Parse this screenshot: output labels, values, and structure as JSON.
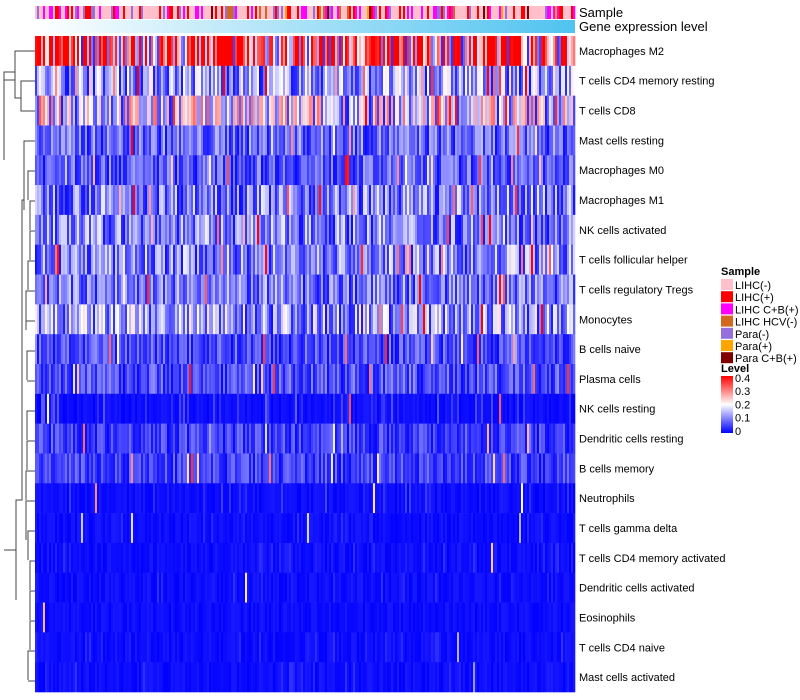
{
  "chart_data": {
    "type": "heatmap",
    "title": "",
    "annotations": [
      "Sample",
      "Gene expression level"
    ],
    "rows": [
      "Macrophages M2",
      "T cells CD4 memory resting",
      "T cells CD8",
      "Mast cells resting",
      "Macrophages M0",
      "Macrophages M1",
      "NK cells activated",
      "T cells follicular helper",
      "T cells regulatory  Tregs",
      "Monocytes",
      "B cells naive",
      "Plasma cells",
      "NK cells resting",
      "Dendritic cells resting",
      "B cells memory",
      "Neutrophils",
      "T cells gamma delta",
      "T cells CD4 memory activated",
      "Dendritic cells activated",
      "Eosinophils",
      "T cells CD4 naive",
      "Mast cells activated"
    ],
    "row_mean_level": [
      0.3,
      0.12,
      0.17,
      0.08,
      0.07,
      0.1,
      0.1,
      0.1,
      0.09,
      0.12,
      0.06,
      0.06,
      0.04,
      0.05,
      0.05,
      0.03,
      0.02,
      0.02,
      0.02,
      0.01,
      0.02,
      0.02
    ],
    "n_columns": 270,
    "sample_legend": {
      "title": "Sample",
      "entries": [
        {
          "label": "LIHC(-)",
          "color": "#ffc0cb"
        },
        {
          "label": "LIHC(+)",
          "color": "#ff0000"
        },
        {
          "label": "LIHC C+B(+)",
          "color": "#ff00ff"
        },
        {
          "label": "LIHC HCV(-)",
          "color": "#d2691e"
        },
        {
          "label": "Para(-)",
          "color": "#9370db"
        },
        {
          "label": "Para(+)",
          "color": "#ffa500"
        },
        {
          "label": "Para C+B(+)",
          "color": "#800000"
        }
      ]
    },
    "level_legend": {
      "title": "Level",
      "ticks": [
        "0.4",
        "0.3",
        "0.2",
        "0.1",
        "0"
      ],
      "range": [
        0,
        0.4
      ],
      "colors": [
        "#0000ff",
        "#ffffff",
        "#ff0000"
      ]
    },
    "gene_expression_colors": [
      "#ffffff",
      "#4fc3f0"
    ]
  }
}
